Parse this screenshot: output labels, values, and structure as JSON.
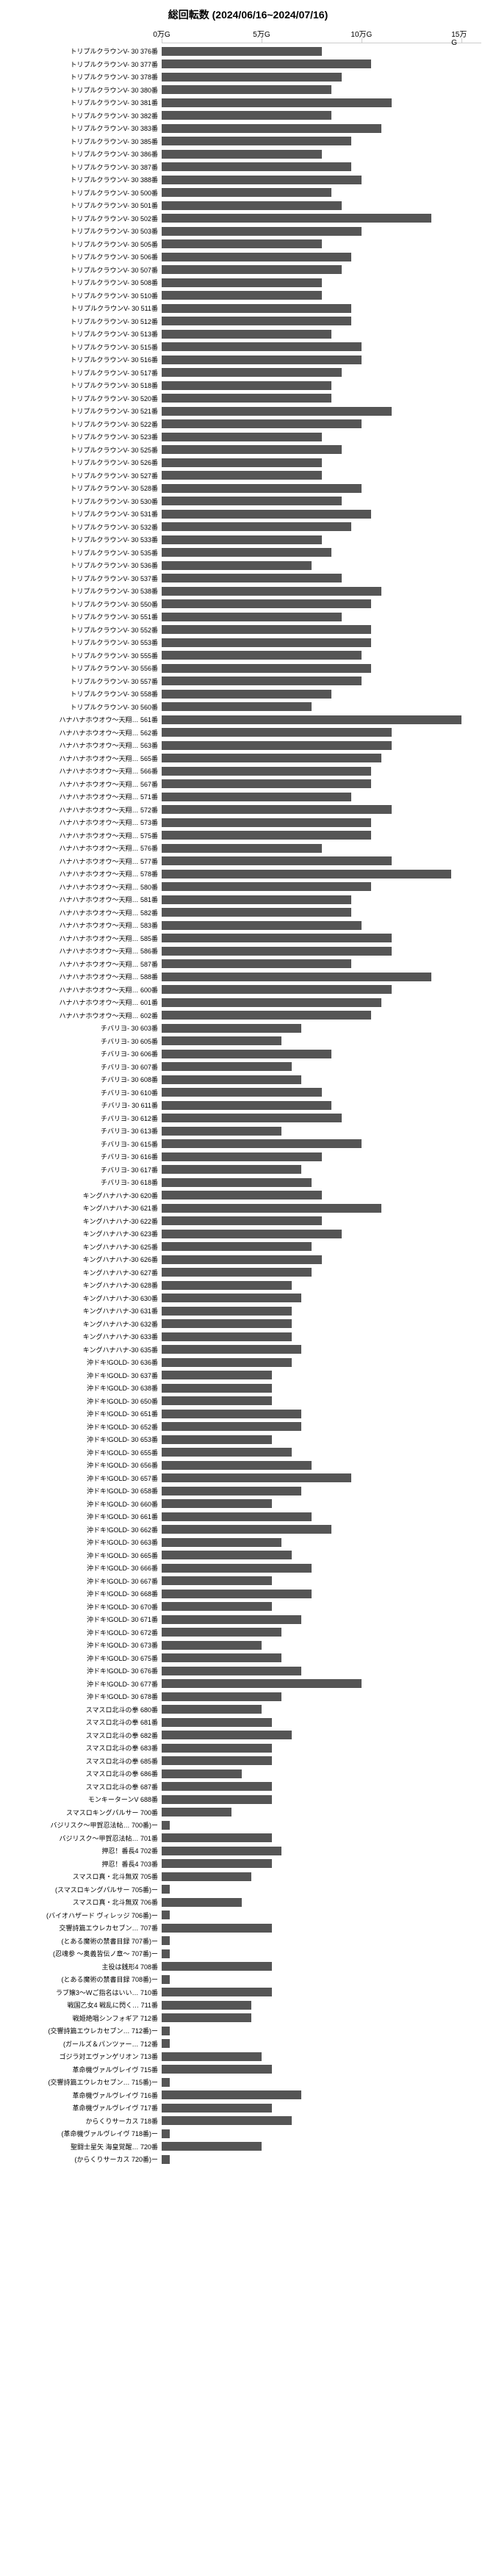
{
  "title": "総回転数 (2024/06/16~2024/07/16)",
  "xmax": 160000,
  "ticks": [
    {
      "v": 0,
      "l": "0万G"
    },
    {
      "v": 50000,
      "l": "5万G"
    },
    {
      "v": 100000,
      "l": "10万G"
    },
    {
      "v": 150000,
      "l": "15万G"
    }
  ],
  "bar_color": "#555555",
  "bars": [
    {
      "l": "トリプルクラウンV- 30   376番",
      "v": 80000
    },
    {
      "l": "トリプルクラウンV- 30   377番",
      "v": 105000
    },
    {
      "l": "トリプルクラウンV- 30   378番",
      "v": 90000
    },
    {
      "l": "トリプルクラウンV- 30   380番",
      "v": 85000
    },
    {
      "l": "トリプルクラウンV- 30   381番",
      "v": 115000
    },
    {
      "l": "トリプルクラウンV- 30   382番",
      "v": 85000
    },
    {
      "l": "トリプルクラウンV- 30   383番",
      "v": 110000
    },
    {
      "l": "トリプルクラウンV- 30   385番",
      "v": 95000
    },
    {
      "l": "トリプルクラウンV- 30   386番",
      "v": 80000
    },
    {
      "l": "トリプルクラウンV- 30   387番",
      "v": 95000
    },
    {
      "l": "トリプルクラウンV- 30   388番",
      "v": 100000
    },
    {
      "l": "トリプルクラウンV- 30   500番",
      "v": 85000
    },
    {
      "l": "トリプルクラウンV- 30   501番",
      "v": 90000
    },
    {
      "l": "トリプルクラウンV- 30   502番",
      "v": 135000
    },
    {
      "l": "トリプルクラウンV- 30   503番",
      "v": 100000
    },
    {
      "l": "トリプルクラウンV- 30   505番",
      "v": 80000
    },
    {
      "l": "トリプルクラウンV- 30   506番",
      "v": 95000
    },
    {
      "l": "トリプルクラウンV- 30   507番",
      "v": 90000
    },
    {
      "l": "トリプルクラウンV- 30   508番",
      "v": 80000
    },
    {
      "l": "トリプルクラウンV- 30   510番",
      "v": 80000
    },
    {
      "l": "トリプルクラウンV- 30   511番",
      "v": 95000
    },
    {
      "l": "トリプルクラウンV- 30   512番",
      "v": 95000
    },
    {
      "l": "トリプルクラウンV- 30   513番",
      "v": 85000
    },
    {
      "l": "トリプルクラウンV- 30   515番",
      "v": 100000
    },
    {
      "l": "トリプルクラウンV- 30   516番",
      "v": 100000
    },
    {
      "l": "トリプルクラウンV- 30   517番",
      "v": 90000
    },
    {
      "l": "トリプルクラウンV- 30   518番",
      "v": 85000
    },
    {
      "l": "トリプルクラウンV- 30   520番",
      "v": 85000
    },
    {
      "l": "トリプルクラウンV- 30   521番",
      "v": 115000
    },
    {
      "l": "トリプルクラウンV- 30   522番",
      "v": 100000
    },
    {
      "l": "トリプルクラウンV- 30   523番",
      "v": 80000
    },
    {
      "l": "トリプルクラウンV- 30   525番",
      "v": 90000
    },
    {
      "l": "トリプルクラウンV- 30   526番",
      "v": 80000
    },
    {
      "l": "トリプルクラウンV- 30   527番",
      "v": 80000
    },
    {
      "l": "トリプルクラウンV- 30   528番",
      "v": 100000
    },
    {
      "l": "トリプルクラウンV- 30   530番",
      "v": 90000
    },
    {
      "l": "トリプルクラウンV- 30   531番",
      "v": 105000
    },
    {
      "l": "トリプルクラウンV- 30   532番",
      "v": 95000
    },
    {
      "l": "トリプルクラウンV- 30   533番",
      "v": 80000
    },
    {
      "l": "トリプルクラウンV- 30   535番",
      "v": 85000
    },
    {
      "l": "トリプルクラウンV- 30   536番",
      "v": 75000
    },
    {
      "l": "トリプルクラウンV- 30   537番",
      "v": 90000
    },
    {
      "l": "トリプルクラウンV- 30   538番",
      "v": 110000
    },
    {
      "l": "トリプルクラウンV- 30   550番",
      "v": 105000
    },
    {
      "l": "トリプルクラウンV- 30   551番",
      "v": 90000
    },
    {
      "l": "トリプルクラウンV- 30   552番",
      "v": 105000
    },
    {
      "l": "トリプルクラウンV- 30   553番",
      "v": 105000
    },
    {
      "l": "トリプルクラウンV- 30   555番",
      "v": 100000
    },
    {
      "l": "トリプルクラウンV- 30   556番",
      "v": 105000
    },
    {
      "l": "トリプルクラウンV- 30   557番",
      "v": 100000
    },
    {
      "l": "トリプルクラウンV- 30   558番",
      "v": 85000
    },
    {
      "l": "トリプルクラウンV- 30   560番",
      "v": 75000
    },
    {
      "l": "ハナハナホウオウ～天翔…   561番",
      "v": 150000
    },
    {
      "l": "ハナハナホウオウ～天翔…   562番",
      "v": 115000
    },
    {
      "l": "ハナハナホウオウ～天翔…   563番",
      "v": 115000
    },
    {
      "l": "ハナハナホウオウ～天翔…   565番",
      "v": 110000
    },
    {
      "l": "ハナハナホウオウ～天翔…   566番",
      "v": 105000
    },
    {
      "l": "ハナハナホウオウ～天翔…   567番",
      "v": 105000
    },
    {
      "l": "ハナハナホウオウ～天翔…   571番",
      "v": 95000
    },
    {
      "l": "ハナハナホウオウ～天翔…   572番",
      "v": 115000
    },
    {
      "l": "ハナハナホウオウ～天翔…   573番",
      "v": 105000
    },
    {
      "l": "ハナハナホウオウ～天翔…   575番",
      "v": 105000
    },
    {
      "l": "ハナハナホウオウ～天翔…   576番",
      "v": 80000
    },
    {
      "l": "ハナハナホウオウ～天翔…   577番",
      "v": 115000
    },
    {
      "l": "ハナハナホウオウ～天翔…   578番",
      "v": 145000
    },
    {
      "l": "ハナハナホウオウ～天翔…   580番",
      "v": 105000
    },
    {
      "l": "ハナハナホウオウ～天翔…   581番",
      "v": 95000
    },
    {
      "l": "ハナハナホウオウ～天翔…   582番",
      "v": 95000
    },
    {
      "l": "ハナハナホウオウ～天翔…   583番",
      "v": 100000
    },
    {
      "l": "ハナハナホウオウ～天翔…   585番",
      "v": 115000
    },
    {
      "l": "ハナハナホウオウ～天翔…   586番",
      "v": 115000
    },
    {
      "l": "ハナハナホウオウ～天翔…   587番",
      "v": 95000
    },
    {
      "l": "ハナハナホウオウ～天翔…   588番",
      "v": 135000
    },
    {
      "l": "ハナハナホウオウ～天翔…   600番",
      "v": 115000
    },
    {
      "l": "ハナハナホウオウ～天翔…   601番",
      "v": 110000
    },
    {
      "l": "ハナハナホウオウ～天翔…   602番",
      "v": 105000
    },
    {
      "l": "チバリヨ- 30   603番",
      "v": 70000
    },
    {
      "l": "チバリヨ- 30   605番",
      "v": 60000
    },
    {
      "l": "チバリヨ- 30   606番",
      "v": 85000
    },
    {
      "l": "チバリヨ- 30   607番",
      "v": 65000
    },
    {
      "l": "チバリヨ- 30   608番",
      "v": 70000
    },
    {
      "l": "チバリヨ- 30   610番",
      "v": 80000
    },
    {
      "l": "チバリヨ- 30   611番",
      "v": 85000
    },
    {
      "l": "チバリヨ- 30   612番",
      "v": 90000
    },
    {
      "l": "チバリヨ- 30   613番",
      "v": 60000
    },
    {
      "l": "チバリヨ- 30   615番",
      "v": 100000
    },
    {
      "l": "チバリヨ- 30   616番",
      "v": 80000
    },
    {
      "l": "チバリヨ- 30   617番",
      "v": 70000
    },
    {
      "l": "チバリヨ- 30   618番",
      "v": 75000
    },
    {
      "l": "キングハナハナ-30   620番",
      "v": 80000
    },
    {
      "l": "キングハナハナ-30   621番",
      "v": 110000
    },
    {
      "l": "キングハナハナ-30   622番",
      "v": 80000
    },
    {
      "l": "キングハナハナ-30   623番",
      "v": 90000
    },
    {
      "l": "キングハナハナ-30   625番",
      "v": 75000
    },
    {
      "l": "キングハナハナ-30   626番",
      "v": 80000
    },
    {
      "l": "キングハナハナ-30   627番",
      "v": 75000
    },
    {
      "l": "キングハナハナ-30   628番",
      "v": 65000
    },
    {
      "l": "キングハナハナ-30   630番",
      "v": 70000
    },
    {
      "l": "キングハナハナ-30   631番",
      "v": 65000
    },
    {
      "l": "キングハナハナ-30   632番",
      "v": 65000
    },
    {
      "l": "キングハナハナ-30   633番",
      "v": 65000
    },
    {
      "l": "キングハナハナ-30   635番",
      "v": 70000
    },
    {
      "l": "沖ドキ!GOLD- 30   636番",
      "v": 65000
    },
    {
      "l": "沖ドキ!GOLD- 30   637番",
      "v": 55000
    },
    {
      "l": "沖ドキ!GOLD- 30   638番",
      "v": 55000
    },
    {
      "l": "沖ドキ!GOLD- 30   650番",
      "v": 55000
    },
    {
      "l": "沖ドキ!GOLD- 30   651番",
      "v": 70000
    },
    {
      "l": "沖ドキ!GOLD- 30   652番",
      "v": 70000
    },
    {
      "l": "沖ドキ!GOLD- 30   653番",
      "v": 55000
    },
    {
      "l": "沖ドキ!GOLD- 30   655番",
      "v": 65000
    },
    {
      "l": "沖ドキ!GOLD- 30   656番",
      "v": 75000
    },
    {
      "l": "沖ドキ!GOLD- 30   657番",
      "v": 95000
    },
    {
      "l": "沖ドキ!GOLD- 30   658番",
      "v": 70000
    },
    {
      "l": "沖ドキ!GOLD- 30   660番",
      "v": 55000
    },
    {
      "l": "沖ドキ!GOLD- 30   661番",
      "v": 75000
    },
    {
      "l": "沖ドキ!GOLD- 30   662番",
      "v": 85000
    },
    {
      "l": "沖ドキ!GOLD- 30   663番",
      "v": 60000
    },
    {
      "l": "沖ドキ!GOLD- 30   665番",
      "v": 65000
    },
    {
      "l": "沖ドキ!GOLD- 30   666番",
      "v": 75000
    },
    {
      "l": "沖ドキ!GOLD- 30   667番",
      "v": 55000
    },
    {
      "l": "沖ドキ!GOLD- 30   668番",
      "v": 75000
    },
    {
      "l": "沖ドキ!GOLD- 30   670番",
      "v": 55000
    },
    {
      "l": "沖ドキ!GOLD- 30   671番",
      "v": 70000
    },
    {
      "l": "沖ドキ!GOLD- 30   672番",
      "v": 60000
    },
    {
      "l": "沖ドキ!GOLD- 30   673番",
      "v": 50000
    },
    {
      "l": "沖ドキ!GOLD- 30   675番",
      "v": 60000
    },
    {
      "l": "沖ドキ!GOLD- 30   676番",
      "v": 70000
    },
    {
      "l": "沖ドキ!GOLD- 30   677番",
      "v": 100000
    },
    {
      "l": "沖ドキ!GOLD- 30   678番",
      "v": 60000
    },
    {
      "l": "スマスロ北斗の拳   680番",
      "v": 50000
    },
    {
      "l": "スマスロ北斗の拳   681番",
      "v": 55000
    },
    {
      "l": "スマスロ北斗の拳   682番",
      "v": 65000
    },
    {
      "l": "スマスロ北斗の拳   683番",
      "v": 55000
    },
    {
      "l": "スマスロ北斗の拳   685番",
      "v": 55000
    },
    {
      "l": "スマスロ北斗の拳   686番",
      "v": 40000
    },
    {
      "l": "スマスロ北斗の拳   687番",
      "v": 55000
    },
    {
      "l": "モンキーターンV   688番",
      "v": 55000
    },
    {
      "l": "スマスロキングパルサー   700番",
      "v": 35000
    },
    {
      "l": "バジリスク～甲賀忍法帖…   700番)ー",
      "v": 4000
    },
    {
      "l": "バジリスク～甲賀忍法帖…   701番",
      "v": 55000
    },
    {
      "l": "押忍！番長4   702番",
      "v": 60000
    },
    {
      "l": "押忍！番長4   703番",
      "v": 55000
    },
    {
      "l": "スマスロ真・北斗無双   705番",
      "v": 45000
    },
    {
      "l": "(スマスロキングパルサー   705番)ー",
      "v": 4000
    },
    {
      "l": "スマスロ真・北斗無双   706番",
      "v": 40000
    },
    {
      "l": "(バイオハザード ヴィレッジ   706番)ー",
      "v": 4000
    },
    {
      "l": "交響詩篇エウレカセブン…   707番",
      "v": 55000
    },
    {
      "l": "(とある魔術の禁書目録   707番)ー",
      "v": 4000
    },
    {
      "l": "(忍魂参 ～奥義皆伝ノ章～   707番)ー",
      "v": 4000
    },
    {
      "l": "主役は銭形4   708番",
      "v": 55000
    },
    {
      "l": "(とある魔術の禁書目録   708番)ー",
      "v": 4000
    },
    {
      "l": "ラブ嬢3～Wご指名はいい…   710番",
      "v": 55000
    },
    {
      "l": "戦国乙女4 戦乱に閃く…   711番",
      "v": 45000
    },
    {
      "l": "戦姫絶唱シンフォギア   712番",
      "v": 45000
    },
    {
      "l": "(交響詩篇エウレカセブン…   712番)ー",
      "v": 4000
    },
    {
      "l": "(ガールズ＆パンツァー…   712番",
      "v": 4000
    },
    {
      "l": "ゴジラ対エヴァンゲリオン   713番",
      "v": 50000
    },
    {
      "l": "革命機ヴァルヴレイヴ   715番",
      "v": 55000
    },
    {
      "l": "(交響詩篇エウレカセブン…   715番)ー",
      "v": 4000
    },
    {
      "l": "革命機ヴァルヴレイヴ   716番",
      "v": 70000
    },
    {
      "l": "革命機ヴァルヴレイヴ   717番",
      "v": 55000
    },
    {
      "l": "からくりサーカス   718番",
      "v": 65000
    },
    {
      "l": "(革命機ヴァルヴレイヴ   718番)ー",
      "v": 4000
    },
    {
      "l": "聖闘士星矢 海皇覚醒…   720番",
      "v": 50000
    },
    {
      "l": "(からくりサーカス   720番)ー",
      "v": 4000
    }
  ]
}
